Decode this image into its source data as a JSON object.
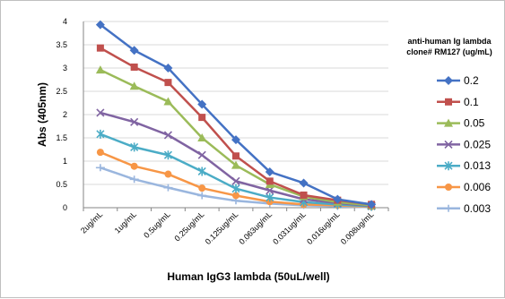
{
  "chart_data": {
    "type": "line",
    "title": "",
    "xlabel": "Human IgG3 lambda (50uL/well)",
    "ylabel": "Abs (405nm)",
    "ylim": [
      0,
      4
    ],
    "yticks": [
      "0",
      "0.5",
      "1",
      "1.5",
      "2",
      "2.5",
      "3",
      "3.5",
      "4"
    ],
    "grid": "horizontal",
    "legend_position": "right",
    "legend_title": [
      "anti-human Ig lambda",
      "clone# RM127 (ug/mL)"
    ],
    "categories": [
      "2ug/mL",
      "1ug/mL",
      "0.5ug/mL",
      "0.25ug/mL",
      "0.125ug/mL",
      "0.063ug/mL",
      "0.031ug/mL",
      "0.016ug/mL",
      "0.008ug/mL"
    ],
    "series": [
      {
        "name": "0.2",
        "color": "#4472C4",
        "marker": "diamond",
        "values": [
          3.93,
          3.38,
          3.0,
          2.22,
          1.46,
          0.77,
          0.53,
          0.18,
          0.07
        ]
      },
      {
        "name": "0.1",
        "color": "#C0504D",
        "marker": "square",
        "values": [
          3.43,
          3.02,
          2.69,
          1.94,
          1.11,
          0.57,
          0.27,
          0.16,
          0.07
        ]
      },
      {
        "name": "0.05",
        "color": "#9BBB59",
        "marker": "triangle",
        "values": [
          2.96,
          2.61,
          2.28,
          1.5,
          0.91,
          0.5,
          0.24,
          0.12,
          0.05
        ]
      },
      {
        "name": "0.025",
        "color": "#8064A2",
        "marker": "x",
        "values": [
          2.04,
          1.84,
          1.56,
          1.13,
          0.57,
          0.37,
          0.18,
          0.1,
          0.04
        ]
      },
      {
        "name": "0.013",
        "color": "#4BACC6",
        "marker": "asterisk",
        "values": [
          1.58,
          1.3,
          1.13,
          0.78,
          0.41,
          0.22,
          0.12,
          0.07,
          0.03
        ]
      },
      {
        "name": "0.006",
        "color": "#F79646",
        "marker": "circle",
        "values": [
          1.19,
          0.89,
          0.72,
          0.42,
          0.26,
          0.13,
          0.07,
          0.05,
          0.02
        ]
      },
      {
        "name": "0.003",
        "color": "#9AB6DE",
        "marker": "plus",
        "values": [
          0.86,
          0.61,
          0.43,
          0.26,
          0.15,
          0.09,
          0.05,
          0.03,
          0.01
        ]
      }
    ]
  }
}
